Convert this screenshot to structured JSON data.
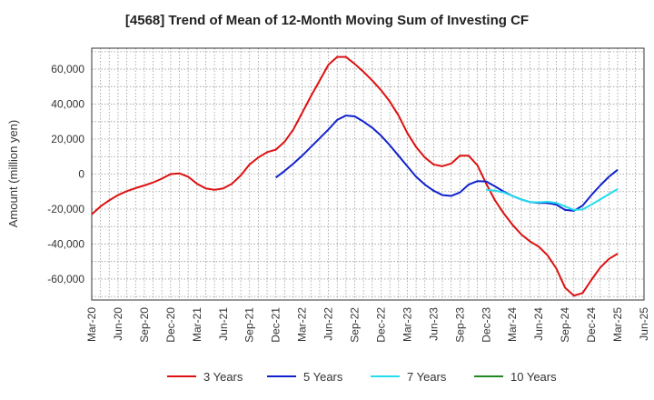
{
  "chart_data": {
    "type": "line",
    "title": "[4568]  Trend of Mean of 12-Month Moving Sum of Investing CF",
    "xlabel": "",
    "ylabel": "Amount (million yen)",
    "ylim": [
      -72000,
      72000
    ],
    "yticks": [
      60000,
      40000,
      20000,
      0,
      -20000,
      -40000,
      -60000
    ],
    "ytick_labels": [
      "60,000",
      "40,000",
      "20,000",
      "0",
      "-20,000",
      "-40,000",
      "-60,000"
    ],
    "grid": true,
    "legend_position": "bottom",
    "x_range_months": [
      0,
      63
    ],
    "xtick_labels": [
      "Mar-20",
      "Jun-20",
      "Sep-20",
      "Dec-20",
      "Mar-21",
      "Jun-21",
      "Sep-21",
      "Dec-21",
      "Mar-22",
      "Jun-22",
      "Sep-22",
      "Dec-22",
      "Mar-23",
      "Jun-23",
      "Sep-23",
      "Dec-23",
      "Mar-24",
      "Jun-24",
      "Sep-24",
      "Dec-24",
      "Mar-25",
      "Jun-25"
    ],
    "series": [
      {
        "name": "3 Years",
        "color": "#dd1111",
        "start_month": 0,
        "values": [
          -23000,
          -18500,
          -15000,
          -12000,
          -9800,
          -8000,
          -6500,
          -4800,
          -2600,
          0,
          400,
          -1500,
          -5500,
          -8200,
          -9000,
          -8200,
          -5500,
          -800,
          5500,
          9500,
          12500,
          14000,
          18500,
          25500,
          35000,
          44500,
          53500,
          62500,
          67000,
          67000,
          63000,
          58500,
          53500,
          48000,
          41500,
          33500,
          23500,
          15500,
          9500,
          5500,
          4500,
          6000,
          10500,
          10500,
          5000,
          -5500,
          -15000,
          -22500,
          -29000,
          -34500,
          -38500,
          -41500,
          -46500,
          -54000,
          -65000,
          -69500,
          -68000,
          -60500,
          -53500,
          -48500,
          -45500
        ]
      },
      {
        "name": "5 Years",
        "color": "#1122cc",
        "start_month": 21,
        "values": [
          -2000,
          1800,
          6000,
          10500,
          15500,
          20500,
          25500,
          31000,
          33500,
          33000,
          30000,
          26500,
          22000,
          16500,
          10500,
          4500,
          -1500,
          -6000,
          -9500,
          -12000,
          -12500,
          -10500,
          -6000,
          -4000,
          -4200,
          -7000,
          -10000,
          -12500,
          -14500,
          -16000,
          -16500,
          -16500,
          -17500,
          -20500,
          -21000,
          -18000,
          -12000,
          -6500,
          -1500,
          2500
        ]
      },
      {
        "name": "7 Years",
        "color": "#22ddee",
        "start_month": 45,
        "values": [
          -9000,
          -9500,
          -10500,
          -12500,
          -14500,
          -16000,
          -16200,
          -15800,
          -16500,
          -18500,
          -20500,
          -20200,
          -17500,
          -14500,
          -11500,
          -8500
        ]
      },
      {
        "name": "10 Years",
        "color": "#228822",
        "start_month": 0,
        "values": []
      }
    ]
  }
}
